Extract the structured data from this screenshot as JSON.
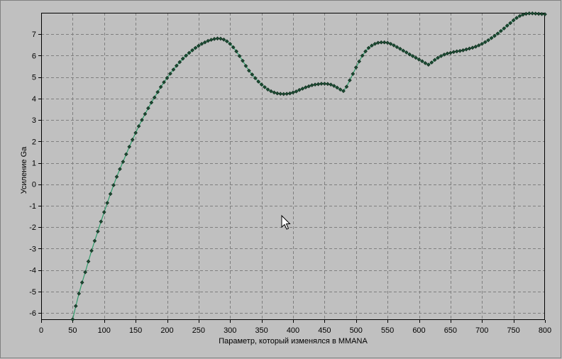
{
  "window": {
    "background": "#c0c0c0"
  },
  "cursor": {
    "icon": "mouse-pointer-icon"
  },
  "chart_data": {
    "type": "line",
    "xlabel": "Параметр, который изменялся в MMANA",
    "ylabel": "Усиление Ga",
    "xlim": [
      0,
      800
    ],
    "ylim": [
      -6.33,
      8
    ],
    "xticks": [
      0,
      50,
      100,
      150,
      200,
      250,
      300,
      350,
      400,
      450,
      500,
      550,
      600,
      650,
      700,
      750,
      800
    ],
    "yticks": [
      -6,
      -5,
      -4,
      -3,
      -2,
      -1,
      0,
      1,
      2,
      3,
      4,
      5,
      6,
      7
    ],
    "grid": true,
    "legend": "none",
    "marker": "diamond",
    "colors": {
      "line": "#2f9d6b",
      "marker_fill": "#1e4a33",
      "marker_stroke": "#0b2a1a",
      "grid": "#7f7f7f",
      "axis": "#000000",
      "plot_background": "#c0c0c0"
    },
    "series": [
      {
        "x": [
          50,
          55,
          60,
          65,
          70,
          75,
          80,
          85,
          90,
          95,
          100,
          105,
          110,
          115,
          120,
          125,
          130,
          135,
          140,
          145,
          150,
          155,
          160,
          165,
          170,
          175,
          180,
          185,
          190,
          195,
          200,
          205,
          210,
          215,
          220,
          225,
          230,
          235,
          240,
          245,
          250,
          255,
          260,
          265,
          270,
          275,
          280,
          285,
          290,
          295,
          300,
          305,
          310,
          315,
          320,
          325,
          330,
          335,
          340,
          345,
          350,
          355,
          360,
          365,
          370,
          375,
          380,
          385,
          390,
          395,
          400,
          405,
          410,
          415,
          420,
          425,
          430,
          435,
          440,
          445,
          450,
          455,
          460,
          465,
          470,
          475,
          480,
          485,
          490,
          495,
          500,
          505,
          510,
          515,
          520,
          525,
          530,
          535,
          540,
          545,
          550,
          555,
          560,
          565,
          570,
          575,
          580,
          585,
          590,
          595,
          600,
          605,
          610,
          615,
          620,
          625,
          630,
          635,
          640,
          645,
          650,
          655,
          660,
          665,
          670,
          675,
          680,
          685,
          690,
          695,
          700,
          705,
          710,
          715,
          720,
          725,
          730,
          735,
          740,
          745,
          750,
          755,
          760,
          765,
          770,
          775,
          780,
          785,
          790,
          795,
          800
        ],
        "y": [
          -6.3,
          -5.68,
          -5.1,
          -4.58,
          -4.1,
          -3.6,
          -3.1,
          -2.64,
          -2.2,
          -1.74,
          -1.3,
          -0.87,
          -0.45,
          -0.04,
          0.35,
          0.71,
          1.05,
          1.4,
          1.75,
          2.08,
          2.4,
          2.71,
          3.0,
          3.28,
          3.55,
          3.81,
          4.05,
          4.3,
          4.54,
          4.76,
          4.96,
          5.16,
          5.35,
          5.53,
          5.7,
          5.86,
          6.0,
          6.13,
          6.25,
          6.36,
          6.46,
          6.55,
          6.62,
          6.69,
          6.74,
          6.78,
          6.8,
          6.79,
          6.75,
          6.67,
          6.55,
          6.39,
          6.2,
          5.98,
          5.76,
          5.52,
          5.3,
          5.12,
          4.95,
          4.79,
          4.65,
          4.53,
          4.42,
          4.34,
          4.28,
          4.24,
          4.22,
          4.21,
          4.22,
          4.24,
          4.28,
          4.33,
          4.4,
          4.46,
          4.52,
          4.57,
          4.62,
          4.65,
          4.67,
          4.69,
          4.69,
          4.68,
          4.65,
          4.59,
          4.51,
          4.42,
          4.35,
          4.55,
          4.85,
          5.15,
          5.45,
          5.73,
          6.0,
          6.2,
          6.36,
          6.47,
          6.55,
          6.6,
          6.62,
          6.62,
          6.6,
          6.55,
          6.48,
          6.4,
          6.32,
          6.23,
          6.15,
          6.06,
          5.98,
          5.9,
          5.82,
          5.74,
          5.65,
          5.58,
          5.68,
          5.8,
          5.9,
          5.98,
          6.05,
          6.1,
          6.13,
          6.17,
          6.2,
          6.22,
          6.25,
          6.29,
          6.33,
          6.37,
          6.42,
          6.48,
          6.55,
          6.63,
          6.72,
          6.82,
          6.92,
          7.03,
          7.15,
          7.27,
          7.4,
          7.52,
          7.65,
          7.76,
          7.85,
          7.91,
          7.95,
          7.97,
          7.97,
          7.96,
          7.95,
          7.94,
          7.93
        ]
      }
    ]
  }
}
